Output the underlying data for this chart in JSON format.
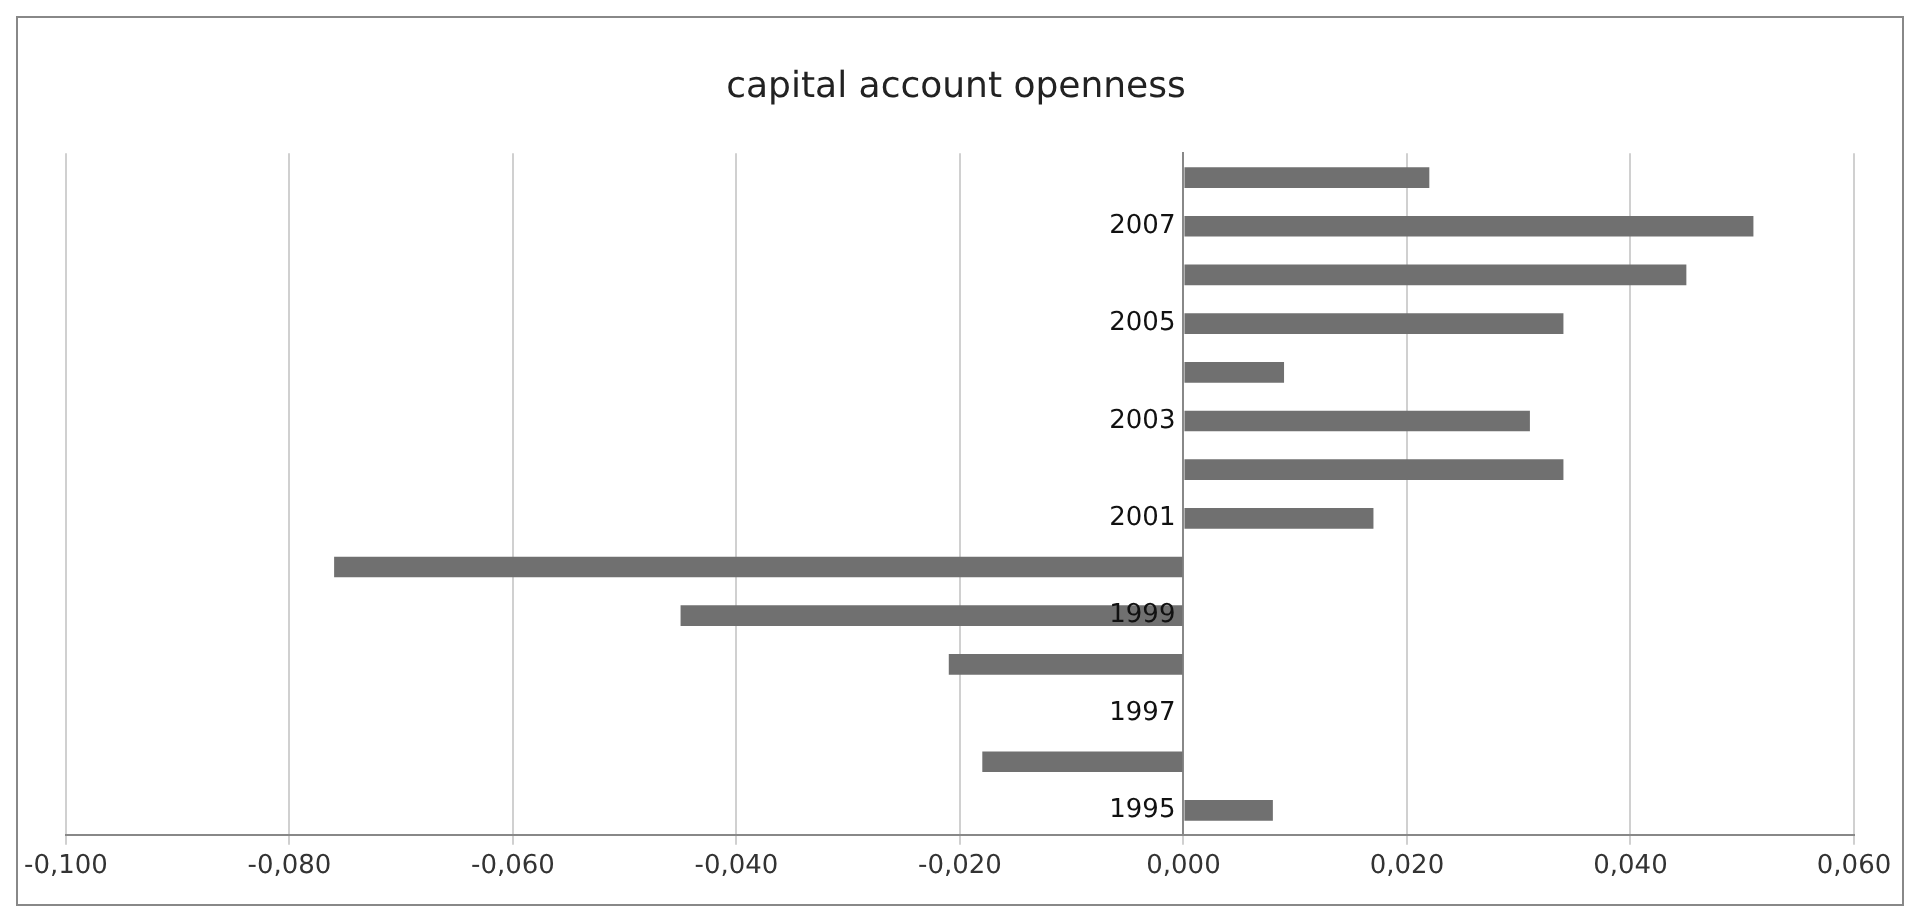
{
  "chart_data": {
    "type": "bar",
    "orientation": "horizontal",
    "title": "capital account openness",
    "categories": [
      null,
      "2007",
      null,
      "2005",
      null,
      "2003",
      null,
      "2001",
      null,
      "1999",
      null,
      "1997",
      null,
      "1995"
    ],
    "values": [
      0.022,
      0.051,
      0.045,
      0.034,
      0.009,
      0.031,
      0.034,
      0.017,
      -0.076,
      -0.045,
      -0.021,
      0,
      -0.018,
      0.008
    ],
    "color": "#707070",
    "xlim": [
      -0.1,
      0.06
    ],
    "xticks": [
      {
        "value": -0.1,
        "label": "-0,100"
      },
      {
        "value": -0.08,
        "label": "-0,080"
      },
      {
        "value": -0.06,
        "label": "-0,060"
      },
      {
        "value": -0.04,
        "label": "-0,040"
      },
      {
        "value": -0.02,
        "label": "-0,020"
      },
      {
        "value": 0,
        "label": "0,000"
      },
      {
        "value": 0.02,
        "label": "0,020"
      },
      {
        "value": 0.04,
        "label": "0,040"
      },
      {
        "value": 0.06,
        "label": "0,060"
      }
    ],
    "grid": "x"
  }
}
